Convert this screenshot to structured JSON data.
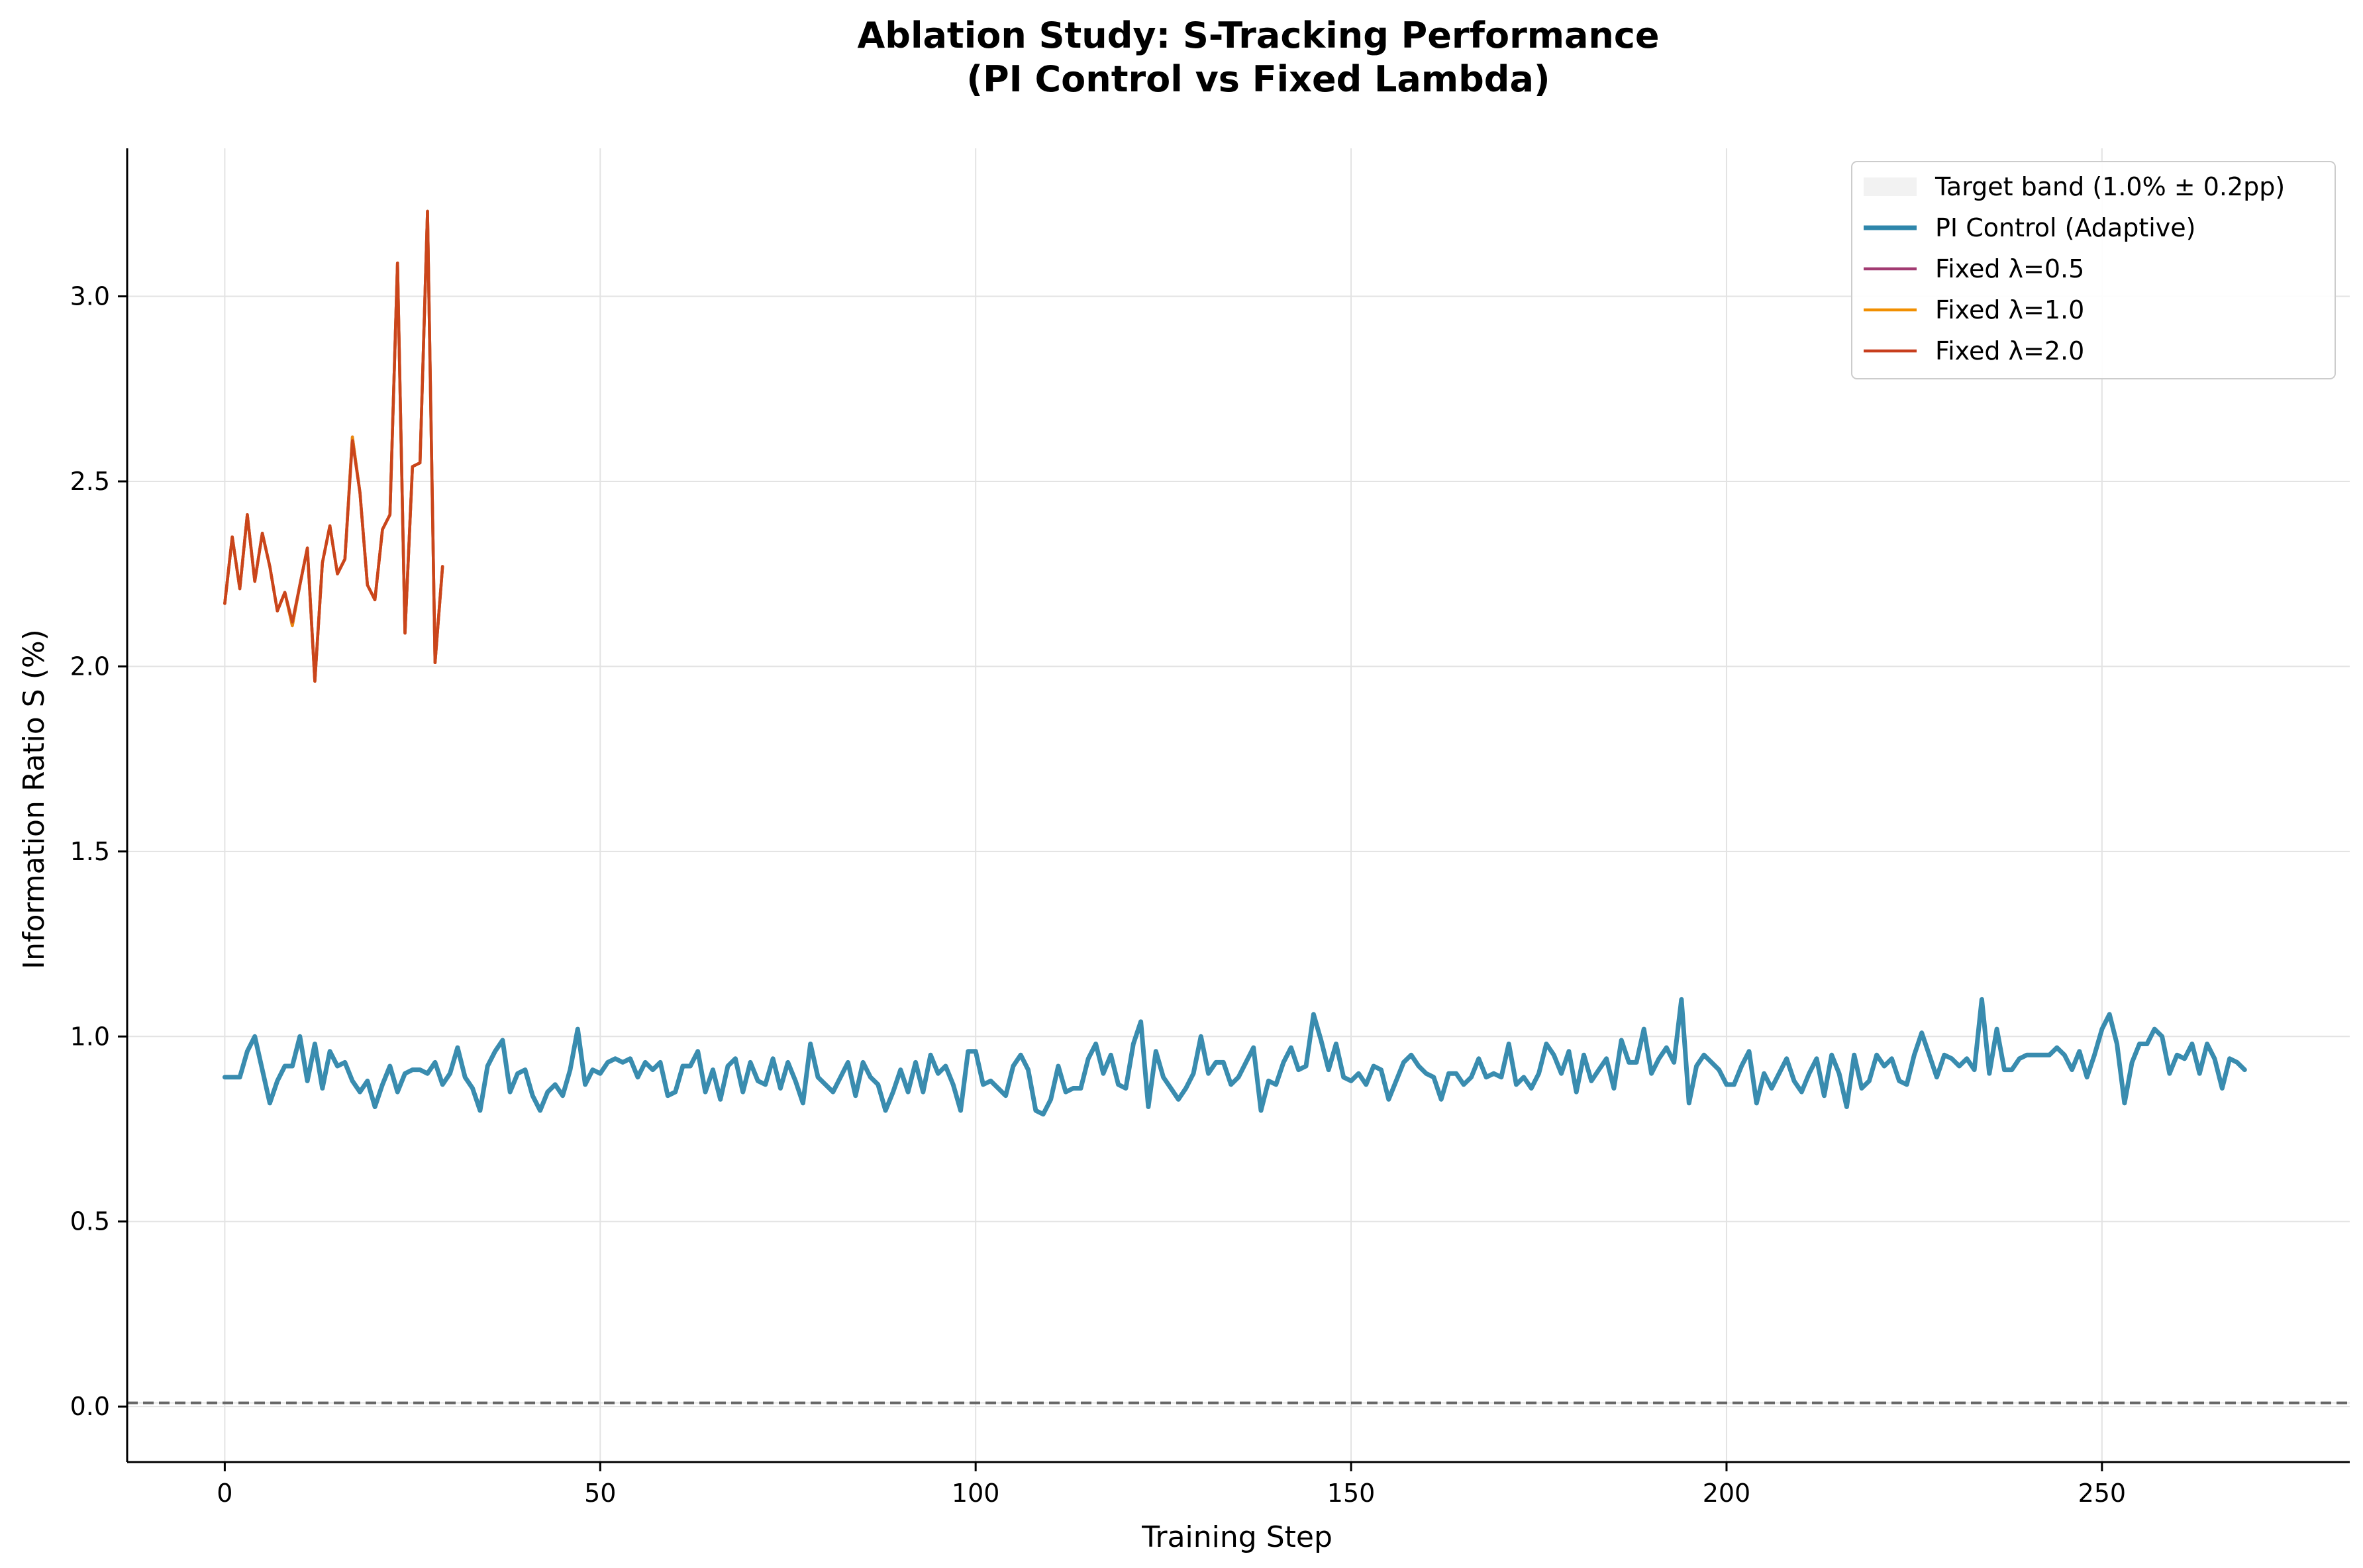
{
  "chart_data": {
    "type": "line",
    "title_line1": "Ablation Study: S-Tracking Performance",
    "title_line2": "(PI Control vs Fixed Lambda)",
    "xlabel": "Training Step",
    "ylabel": "Information Ratio S (%)",
    "xlim": [
      -13,
      283
    ],
    "ylim": [
      -0.15,
      3.4
    ],
    "xticks": [
      0,
      50,
      100,
      150,
      200,
      250
    ],
    "yticks": [
      0.0,
      0.5,
      1.0,
      1.5,
      2.0,
      2.5,
      3.0
    ],
    "xtick_labels": [
      "0",
      "50",
      "100",
      "150",
      "200",
      "250"
    ],
    "ytick_labels": [
      "0.0",
      "0.5",
      "1.0",
      "1.5",
      "2.0",
      "2.5",
      "3.0"
    ],
    "grid": true,
    "legend_placement": "top-right",
    "target_band": {
      "name": "Target band (1.0% ± 0.2pp)",
      "center": 0.01,
      "halfwidth": 0.002,
      "color": "#d9d9d9"
    },
    "reference_line": {
      "y": 0.01,
      "style": "dashed",
      "color": "#666666"
    },
    "series": [
      {
        "name": "PI Control (Adaptive)",
        "color": "#2e86ab",
        "x_start": 0,
        "x_step": 1,
        "values": [
          0.89,
          0.89,
          0.89,
          0.96,
          1.0,
          0.91,
          0.82,
          0.88,
          0.92,
          0.92,
          1.0,
          0.88,
          0.98,
          0.86,
          0.96,
          0.92,
          0.93,
          0.88,
          0.85,
          0.88,
          0.81,
          0.87,
          0.92,
          0.85,
          0.9,
          0.91,
          0.91,
          0.9,
          0.93,
          0.87,
          0.9,
          0.97,
          0.89,
          0.86,
          0.8,
          0.92,
          0.96,
          0.99,
          0.85,
          0.9,
          0.91,
          0.84,
          0.8,
          0.85,
          0.87,
          0.84,
          0.91,
          1.02,
          0.87,
          0.91,
          0.9,
          0.93,
          0.94,
          0.93,
          0.94,
          0.89,
          0.93,
          0.91,
          0.93,
          0.84,
          0.85,
          0.92,
          0.92,
          0.96,
          0.85,
          0.91,
          0.83,
          0.92,
          0.94,
          0.85,
          0.93,
          0.88,
          0.87,
          0.94,
          0.86,
          0.93,
          0.88,
          0.82,
          0.98,
          0.89,
          0.87,
          0.85,
          0.89,
          0.93,
          0.84,
          0.93,
          0.89,
          0.87,
          0.8,
          0.85,
          0.91,
          0.85,
          0.93,
          0.85,
          0.95,
          0.9,
          0.92,
          0.87,
          0.8,
          0.96,
          0.96,
          0.87,
          0.88,
          0.86,
          0.84,
          0.92,
          0.95,
          0.91,
          0.8,
          0.79,
          0.83,
          0.92,
          0.85,
          0.86,
          0.86,
          0.94,
          0.98,
          0.9,
          0.95,
          0.87,
          0.86,
          0.98,
          1.04,
          0.81,
          0.96,
          0.89,
          0.86,
          0.83,
          0.86,
          0.9,
          1.0,
          0.9,
          0.93,
          0.93,
          0.87,
          0.89,
          0.93,
          0.97,
          0.8,
          0.88,
          0.87,
          0.93,
          0.97,
          0.91,
          0.92,
          1.06,
          0.99,
          0.91,
          0.98,
          0.89,
          0.88,
          0.9,
          0.87,
          0.92,
          0.91,
          0.83,
          0.88,
          0.93,
          0.95,
          0.92,
          0.9,
          0.89,
          0.83,
          0.9,
          0.9,
          0.87,
          0.89,
          0.94,
          0.89,
          0.9,
          0.89,
          0.98,
          0.87,
          0.89,
          0.86,
          0.9,
          0.98,
          0.95,
          0.9,
          0.96,
          0.85,
          0.95,
          0.88,
          0.91,
          0.94,
          0.86,
          0.99,
          0.93,
          0.93,
          1.02,
          0.9,
          0.94,
          0.97,
          0.93,
          1.1,
          0.82,
          0.92,
          0.95,
          0.93,
          0.91,
          0.87,
          0.87,
          0.92,
          0.96,
          0.82,
          0.9,
          0.86,
          0.9,
          0.94,
          0.88,
          0.85,
          0.9,
          0.94,
          0.84,
          0.95,
          0.9,
          0.81,
          0.95,
          0.86,
          0.88,
          0.95,
          0.92,
          0.94,
          0.88,
          0.87,
          0.95,
          1.01,
          0.95,
          0.89,
          0.95,
          0.94,
          0.92,
          0.94,
          0.91,
          1.1,
          0.9,
          1.02,
          0.91,
          0.91,
          0.94,
          0.95,
          0.95,
          0.95,
          0.95,
          0.97,
          0.95,
          0.91,
          0.96,
          0.89,
          0.95,
          1.02,
          1.06,
          0.98,
          0.82,
          0.93,
          0.98,
          0.98,
          1.02,
          1.0,
          0.9,
          0.95,
          0.94,
          0.98,
          0.9,
          0.98,
          0.94,
          0.86,
          0.94,
          0.93,
          0.91
        ]
      },
      {
        "name": "Fixed λ=0.5",
        "color": "#a23b72",
        "x_start": 0,
        "x_step": 1,
        "values": [
          2.17,
          2.35,
          2.21,
          2.41,
          2.23,
          2.36,
          2.27,
          2.15,
          2.2,
          2.11,
          2.22,
          2.32,
          1.96,
          2.28,
          2.38,
          2.25,
          2.29,
          2.62,
          2.47,
          2.22,
          2.18,
          2.37,
          2.41,
          3.09,
          2.09,
          2.54,
          2.55,
          3.23,
          2.01,
          2.27
        ]
      },
      {
        "name": "Fixed λ=1.0",
        "color": "#f18f01",
        "x_start": 0,
        "x_step": 1,
        "values": [
          2.17,
          2.35,
          2.21,
          2.41,
          2.23,
          2.36,
          2.27,
          2.15,
          2.2,
          2.11,
          2.22,
          2.32,
          1.96,
          2.28,
          2.38,
          2.25,
          2.29,
          2.62,
          2.47,
          2.22,
          2.18,
          2.37,
          2.41,
          3.09,
          2.09,
          2.54,
          2.55,
          3.23,
          2.01,
          2.27
        ]
      },
      {
        "name": "Fixed λ=2.0",
        "color": "#c73e1d",
        "x_start": 0,
        "x_step": 1,
        "values": [
          2.17,
          2.35,
          2.21,
          2.41,
          2.23,
          2.36,
          2.27,
          2.15,
          2.2,
          2.12,
          2.22,
          2.32,
          1.96,
          2.28,
          2.38,
          2.25,
          2.29,
          2.61,
          2.47,
          2.22,
          2.18,
          2.37,
          2.41,
          3.09,
          2.09,
          2.54,
          2.55,
          3.23,
          2.01,
          2.27
        ]
      }
    ]
  }
}
